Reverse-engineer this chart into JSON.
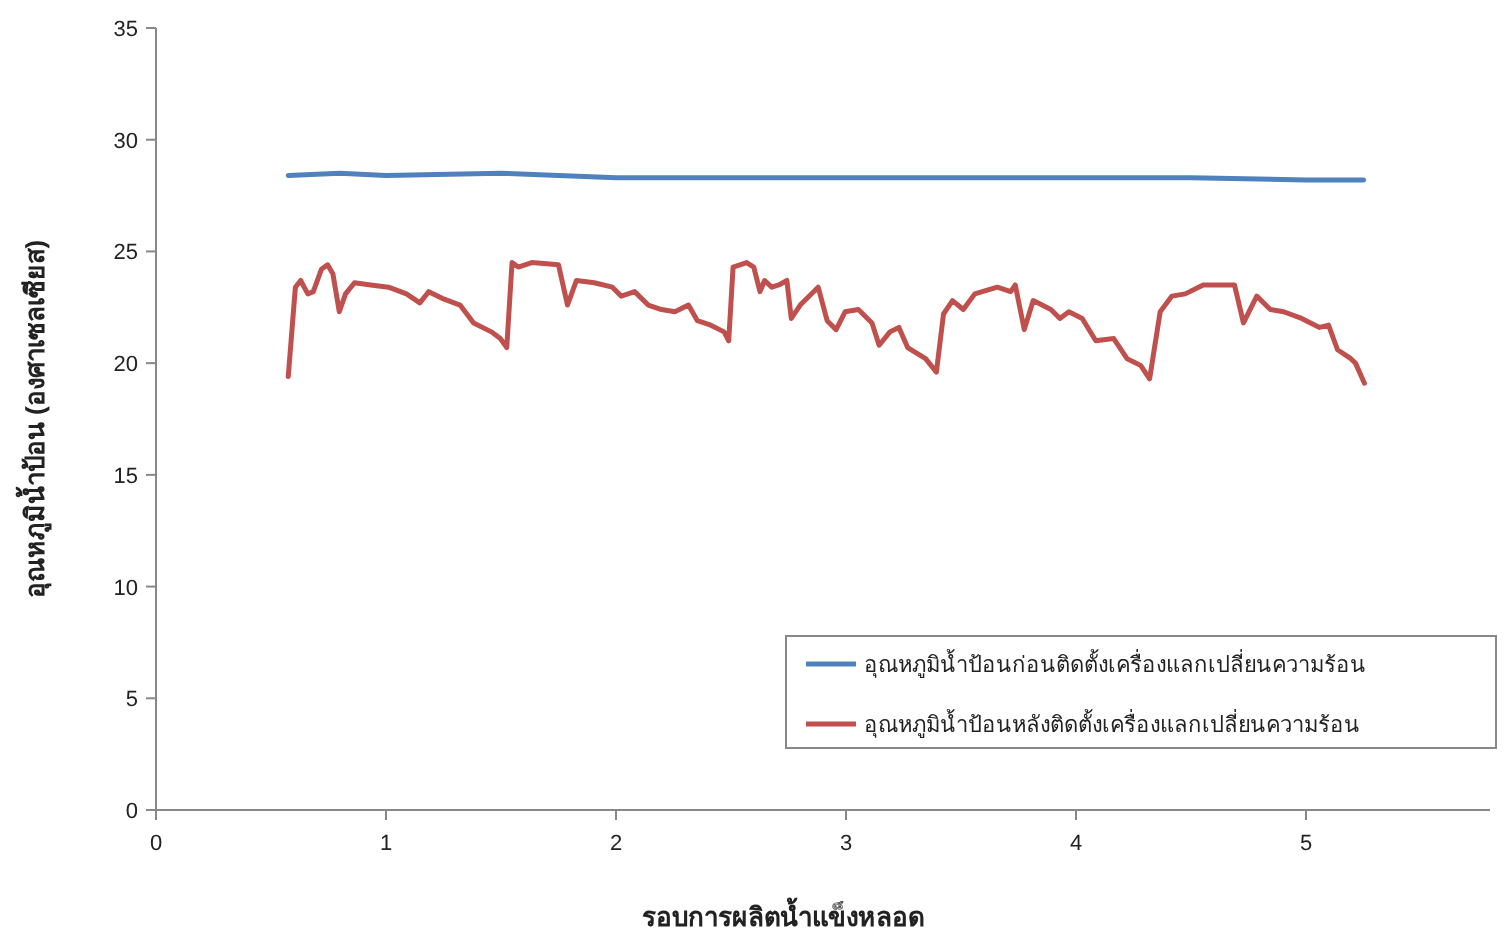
{
  "chart_data": {
    "type": "line",
    "xlabel": "รอบการผลิตน้ำแข็งหลอด",
    "ylabel": "อุณหภูมิน้ำป้อน (องศาเซลเซียส)",
    "xlim": [
      0,
      5.8
    ],
    "xticks": [
      0,
      1,
      2,
      3,
      4,
      5
    ],
    "ylim": [
      0,
      35
    ],
    "yticks": [
      0,
      5,
      10,
      15,
      20,
      25,
      30,
      35
    ],
    "grid": false,
    "legend": "bottom right",
    "marker": "none",
    "line_style": "solid",
    "series": [
      {
        "name": "อุณหภูมิน้ำป้อนก่อนติดตั้งเครื่องแลกเปลี่ยนความร้อน",
        "color": "#4f81bd",
        "x": [
          0.575,
          0.8,
          1.0,
          1.5,
          2.0,
          2.5,
          3.0,
          3.5,
          4.0,
          4.5,
          5.0,
          5.25
        ],
        "values": [
          28.4,
          28.5,
          28.4,
          28.5,
          28.3,
          28.3,
          28.3,
          28.3,
          28.3,
          28.3,
          28.2,
          28.2
        ]
      },
      {
        "name": "อุณหภูมิน้ำป้อนหลังติดตั้งเครื่องแลกเปลี่ยนความร้อน",
        "color": "#c0504d",
        "x": [
          0.575,
          0.606,
          0.629,
          0.66,
          0.684,
          0.719,
          0.746,
          0.769,
          0.797,
          0.824,
          0.863,
          0.933,
          1.011,
          1.089,
          1.147,
          1.186,
          1.244,
          1.322,
          1.381,
          1.458,
          1.497,
          1.525,
          1.548,
          1.575,
          1.634,
          1.75,
          1.789,
          1.828,
          1.906,
          1.984,
          2.023,
          2.081,
          2.14,
          2.198,
          2.256,
          2.315,
          2.354,
          2.412,
          2.47,
          2.49,
          2.509,
          2.568,
          2.599,
          2.626,
          2.646,
          2.677,
          2.708,
          2.743,
          2.762,
          2.801,
          2.879,
          2.918,
          2.957,
          2.996,
          3.054,
          3.113,
          3.144,
          3.191,
          3.23,
          3.268,
          3.346,
          3.393,
          3.424,
          3.463,
          3.51,
          3.56,
          3.658,
          3.716,
          3.736,
          3.775,
          3.814,
          3.891,
          3.93,
          3.969,
          4.027,
          4.086,
          4.164,
          4.222,
          4.281,
          4.32,
          4.366,
          4.417,
          4.475,
          4.553,
          4.689,
          4.728,
          4.786,
          4.845,
          4.903,
          4.981,
          5.059,
          5.098,
          5.137,
          5.195,
          5.215,
          5.254
        ],
        "values": [
          19.4,
          23.4,
          23.7,
          23.1,
          23.2,
          24.2,
          24.4,
          24.0,
          22.3,
          23.1,
          23.6,
          23.5,
          23.4,
          23.1,
          22.7,
          23.2,
          22.9,
          22.6,
          21.8,
          21.4,
          21.1,
          20.7,
          24.5,
          24.3,
          24.5,
          24.4,
          22.6,
          23.7,
          23.6,
          23.4,
          23.0,
          23.2,
          22.6,
          22.4,
          22.3,
          22.6,
          21.9,
          21.7,
          21.4,
          21.0,
          24.3,
          24.5,
          24.3,
          23.2,
          23.7,
          23.4,
          23.5,
          23.7,
          22.0,
          22.6,
          23.4,
          21.9,
          21.5,
          22.3,
          22.4,
          21.8,
          20.8,
          21.4,
          21.6,
          20.7,
          20.2,
          19.6,
          22.2,
          22.8,
          22.4,
          23.1,
          23.4,
          23.2,
          23.5,
          21.5,
          22.8,
          22.4,
          22.0,
          22.3,
          22.0,
          21.0,
          21.1,
          20.2,
          19.9,
          19.3,
          22.3,
          23.0,
          23.1,
          23.5,
          23.5,
          21.8,
          23.0,
          22.4,
          22.3,
          22.0,
          21.6,
          21.7,
          20.6,
          20.2,
          20.0,
          19.1
        ]
      }
    ]
  }
}
